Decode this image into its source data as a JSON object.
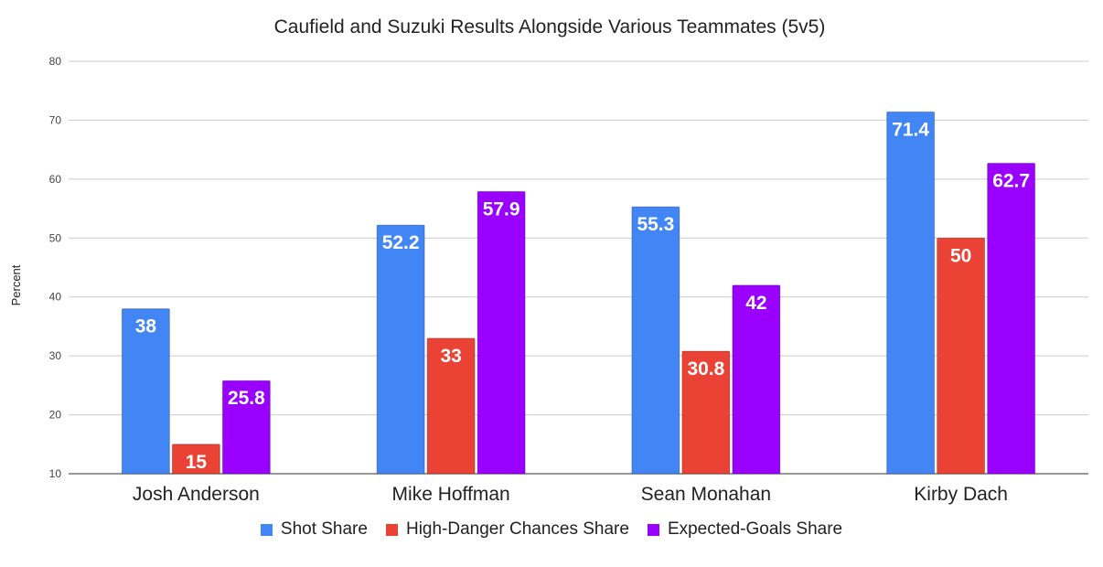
{
  "chart_data": {
    "type": "bar",
    "title": "Caufield and Suzuki Results Alongside Various Teammates (5v5)",
    "xlabel": "",
    "ylabel": "Percent",
    "ylim": [
      10,
      80
    ],
    "yticks": [
      10,
      20,
      30,
      40,
      50,
      60,
      70,
      80
    ],
    "categories": [
      "Josh Anderson",
      "Mike Hoffman",
      "Sean Monahan",
      "Kirby Dach"
    ],
    "series": [
      {
        "name": "Shot Share",
        "color": "#4285f4",
        "values": [
          38,
          52.2,
          55.3,
          71.4
        ]
      },
      {
        "name": "High-Danger Chances Share",
        "color": "#ea4335",
        "values": [
          15,
          33,
          30.8,
          50
        ]
      },
      {
        "name": "Expected-Goals Share",
        "color": "#9900ff",
        "values": [
          25.8,
          57.9,
          42,
          62.7
        ]
      }
    ],
    "grid": true,
    "legend": "bottom"
  }
}
